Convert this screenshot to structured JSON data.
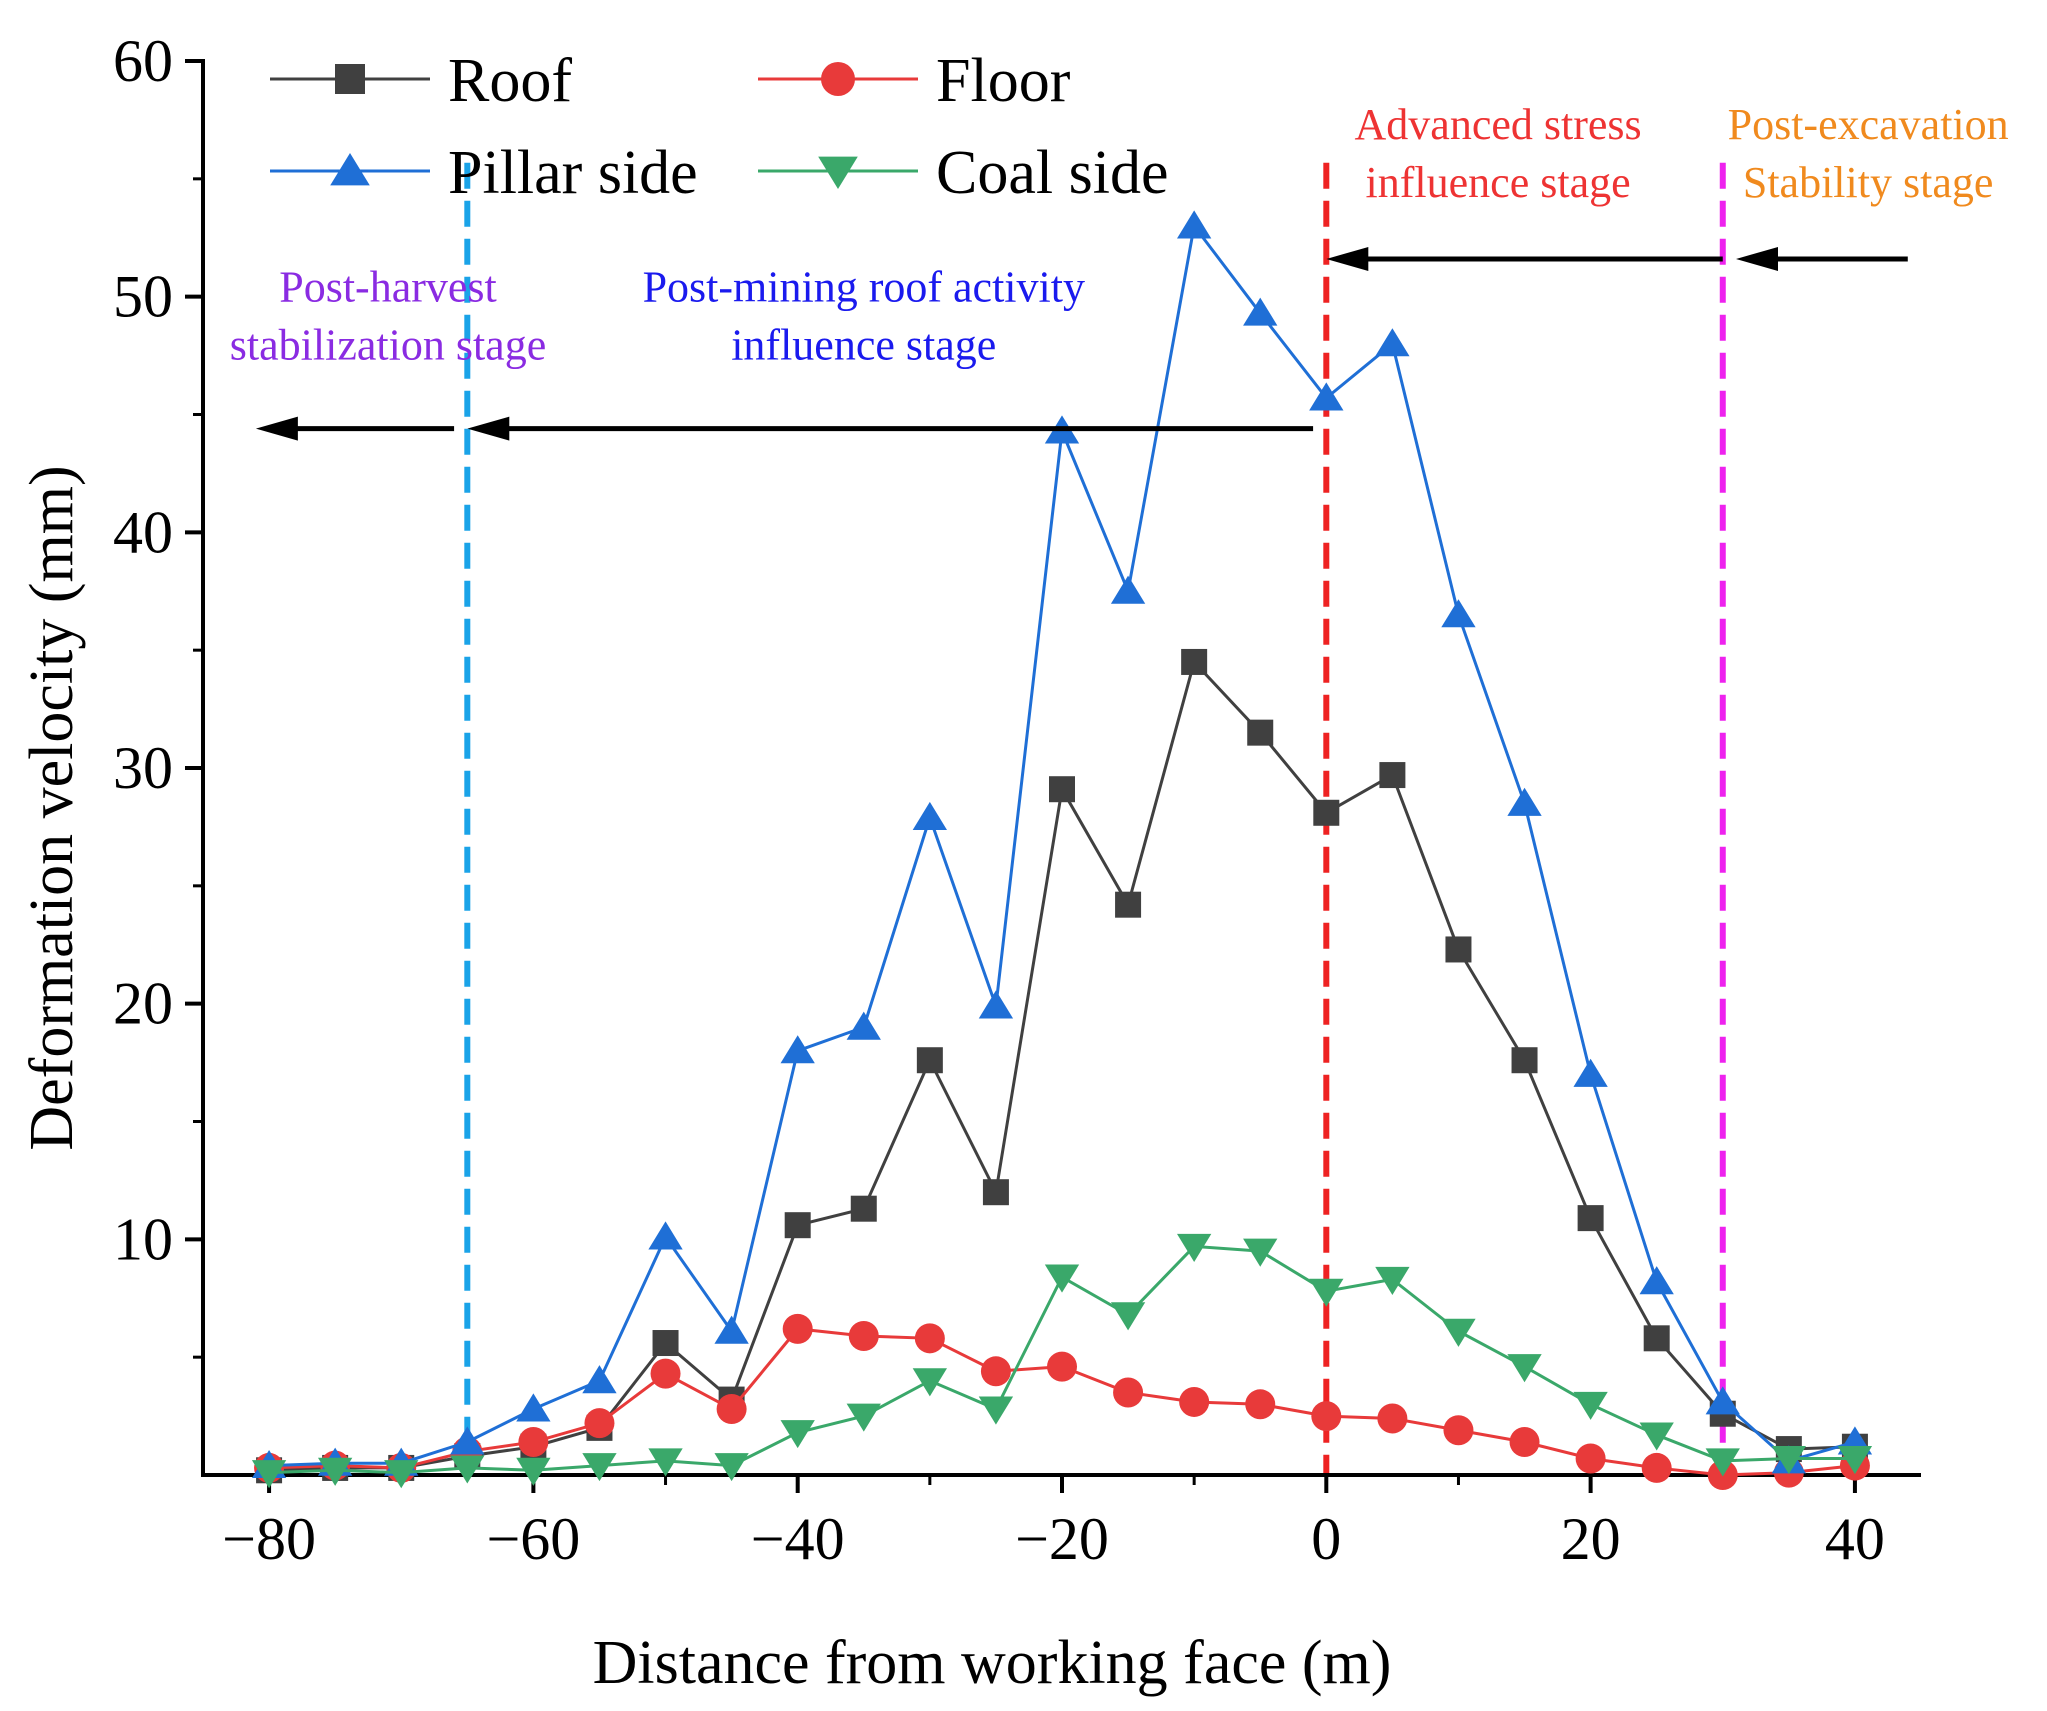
{
  "chart_data": {
    "type": "line",
    "title": "",
    "xlabel": "Distance from working face (m)",
    "ylabel": "Deformation velocity (mm)",
    "xlim": [
      -85,
      45
    ],
    "ylim": [
      0,
      60
    ],
    "x_ticks": [
      -80,
      -60,
      -40,
      -20,
      0,
      20,
      40
    ],
    "x_tick_labels": [
      "−80",
      "−60",
      "−40",
      "−20",
      "0",
      "20",
      "40"
    ],
    "y_ticks": [
      10,
      20,
      30,
      40,
      50,
      60
    ],
    "y_tick_labels": [
      "10",
      "20",
      "30",
      "40",
      "50",
      "60"
    ],
    "grid": false,
    "legend_position": "top-left",
    "x": [
      -80,
      -75,
      -70,
      -65,
      -60,
      -55,
      -50,
      -45,
      -40,
      -35,
      -30,
      -25,
      -20,
      -15,
      -10,
      -5,
      0,
      5,
      10,
      15,
      20,
      25,
      30,
      35,
      40
    ],
    "series": [
      {
        "name": "Roof",
        "color": "#404040",
        "marker": "square",
        "values": [
          0.2,
          0.3,
          0.3,
          0.8,
          1.2,
          2.0,
          5.6,
          3.2,
          10.6,
          11.3,
          17.6,
          12.0,
          29.1,
          24.2,
          34.5,
          31.5,
          28.1,
          29.7,
          22.3,
          17.6,
          10.9,
          5.8,
          2.6,
          1.1,
          1.2
        ]
      },
      {
        "name": "Floor",
        "color": "#e83a3a",
        "marker": "circle",
        "values": [
          0.3,
          0.4,
          0.3,
          1.0,
          1.4,
          2.2,
          4.3,
          2.8,
          6.2,
          5.9,
          5.8,
          4.4,
          4.6,
          3.5,
          3.1,
          3.0,
          2.5,
          2.4,
          1.9,
          1.4,
          0.7,
          0.3,
          0.0,
          0.1,
          0.4
        ]
      },
      {
        "name": "Pillar side",
        "color": "#1f6fd6",
        "marker": "triangle-up",
        "values": [
          0.4,
          0.5,
          0.5,
          1.4,
          2.8,
          4.0,
          10.1,
          6.1,
          18.0,
          19.0,
          27.9,
          19.9,
          44.3,
          37.5,
          53.0,
          49.3,
          45.7,
          48.0,
          36.5,
          28.5,
          17.0,
          8.2,
          3.1,
          0.6,
          1.4
        ]
      },
      {
        "name": "Coal side",
        "color": "#3aa86a",
        "marker": "triangle-down",
        "values": [
          0.1,
          0.2,
          0.1,
          0.3,
          0.2,
          0.4,
          0.6,
          0.4,
          1.8,
          2.5,
          4.0,
          2.8,
          8.4,
          6.8,
          9.7,
          9.5,
          7.8,
          8.3,
          6.1,
          4.6,
          3.0,
          1.7,
          0.6,
          0.7,
          0.7
        ]
      }
    ],
    "stage_boundaries": [
      {
        "x": -65,
        "color": "#1aa3e8"
      },
      {
        "x": 0,
        "color": "#ee2222"
      },
      {
        "x": 30,
        "color": "#ee22ee"
      }
    ],
    "arrows": [
      {
        "from": [
          -1,
          44.4
        ],
        "to": [
          -65,
          44.4
        ]
      },
      {
        "from": [
          -66,
          44.4
        ],
        "to": [
          -81,
          44.4
        ]
      },
      {
        "from": [
          30,
          51.6
        ],
        "to": [
          0,
          51.6
        ]
      },
      {
        "from": [
          44,
          51.6
        ],
        "to": [
          31,
          51.6
        ]
      }
    ],
    "annotations": [
      {
        "lines": [
          "Post-harvest",
          "stabilization stage"
        ],
        "x": -71,
        "y": 49.8,
        "color": "#8a2be2"
      },
      {
        "lines": [
          "Post-mining roof activity",
          "influence stage"
        ],
        "x": -35,
        "y": 49.8,
        "color": "#1a1aee"
      },
      {
        "lines": [
          "Advanced stress",
          "influence stage"
        ],
        "x": 13,
        "y": 56.7,
        "color": "#ee3333"
      },
      {
        "lines": [
          "Post-excavation",
          "Stability stage"
        ],
        "x": 41,
        "y": 56.7,
        "color": "#f08a1e"
      }
    ]
  }
}
